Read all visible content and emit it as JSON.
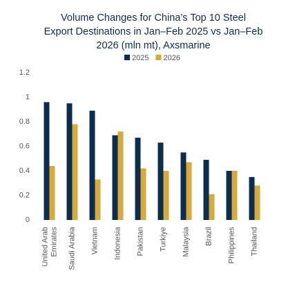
{
  "chart_data": {
    "type": "bar",
    "title": [
      "Volume Changes for China’s Top 10 Steel",
      "Export Destinations in Jan–Feb 2025 vs Jan–Feb",
      "2026 (mln mt), Axsmarine"
    ],
    "categories": [
      "United Arab Emirates",
      "Saudi Arabia",
      "Vietnam",
      "Indonesia",
      "Pakistan",
      "Turkiye",
      "Malaysia",
      "Brazil",
      "Philippines",
      "Thailand"
    ],
    "series": [
      {
        "name": "2025",
        "color": "#0d2d4f",
        "values": [
          0.96,
          0.95,
          0.89,
          0.69,
          0.67,
          0.63,
          0.55,
          0.49,
          0.4,
          0.35
        ]
      },
      {
        "name": "2026",
        "color": "#d6aa3c",
        "values": [
          0.44,
          0.78,
          0.33,
          0.72,
          0.42,
          0.4,
          0.47,
          0.21,
          0.4,
          0.28
        ]
      }
    ],
    "ylim": [
      0,
      1.2
    ],
    "yticks": [
      0,
      0.2,
      0.4,
      0.6,
      0.8,
      1,
      1.2
    ],
    "grid": false
  }
}
